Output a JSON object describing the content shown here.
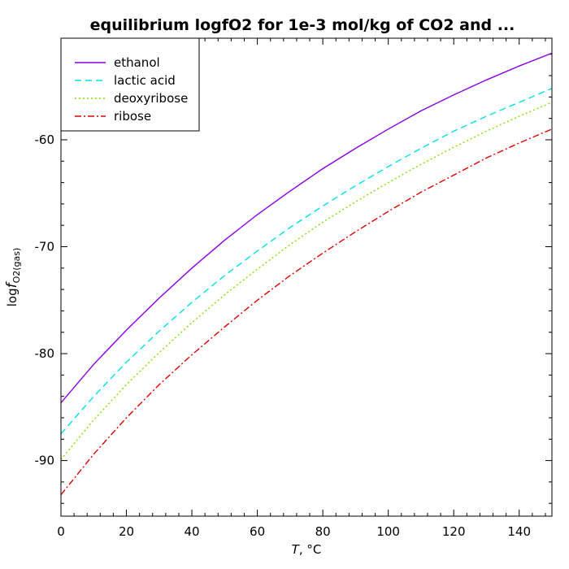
{
  "chart_data": {
    "type": "line",
    "title": "equilibrium logfO2 for 1e-3 mol/kg of CO2 and ...",
    "xlabel": {
      "var": "T",
      "rest": ", °C"
    },
    "ylabel": {
      "main": "log",
      "var": "f",
      "sub": "O2(gas)"
    },
    "xlim": [
      0,
      150
    ],
    "ylim": [
      -95.2,
      -50.5
    ],
    "x_ticks": [
      0,
      20,
      40,
      60,
      80,
      100,
      120,
      140
    ],
    "y_ticks": [
      -90,
      -80,
      -70,
      -60
    ],
    "grid": false,
    "legend_position": "top-left",
    "x": [
      0,
      10,
      20,
      30,
      40,
      50,
      60,
      70,
      80,
      90,
      100,
      110,
      120,
      130,
      140,
      150
    ],
    "series": [
      {
        "name": "ethanol",
        "color": "#8a00e6",
        "dash": "solid",
        "values": [
          -84.6,
          -81.0,
          -77.8,
          -74.8,
          -72.0,
          -69.4,
          -67.0,
          -64.8,
          -62.7,
          -60.8,
          -59.0,
          -57.3,
          -55.8,
          -54.4,
          -53.1,
          -51.9
        ]
      },
      {
        "name": "lactic acid",
        "color": "#00e0e8",
        "dash": "dashed",
        "values": [
          -87.5,
          -84.0,
          -80.8,
          -77.9,
          -75.2,
          -72.7,
          -70.4,
          -68.2,
          -66.2,
          -64.3,
          -62.5,
          -60.8,
          -59.2,
          -57.8,
          -56.5,
          -55.2
        ]
      },
      {
        "name": "deoxyribose",
        "color": "#80e000",
        "dash": "dotted",
        "values": [
          -89.9,
          -86.2,
          -82.9,
          -79.9,
          -77.1,
          -74.5,
          -72.1,
          -69.8,
          -67.7,
          -65.8,
          -64.0,
          -62.3,
          -60.7,
          -59.2,
          -57.8,
          -56.5
        ]
      },
      {
        "name": "ribose",
        "color": "#e00000",
        "dash": "dashdot",
        "values": [
          -93.2,
          -89.4,
          -86.0,
          -82.9,
          -80.1,
          -77.5,
          -75.0,
          -72.7,
          -70.6,
          -68.6,
          -66.7,
          -64.9,
          -63.3,
          -61.7,
          -60.3,
          -59.0
        ]
      }
    ]
  }
}
